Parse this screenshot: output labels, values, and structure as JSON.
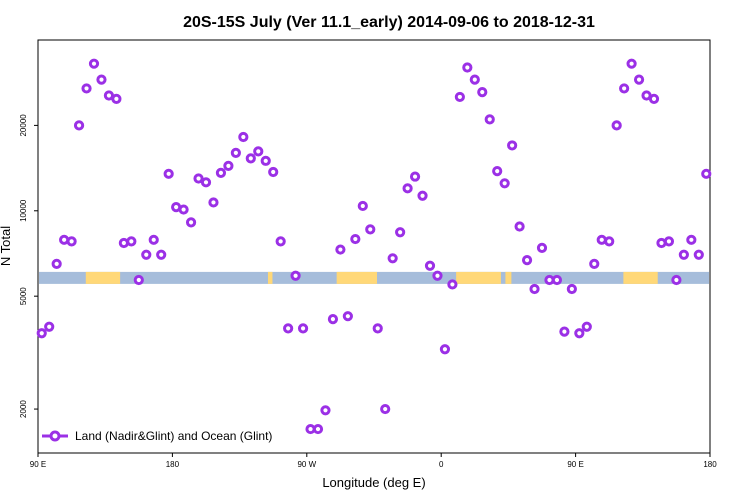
{
  "chart_data": {
    "type": "scatter",
    "title": "20S-15S July (Ver 11.1_early)   2014-09-06 to 2018-12-31",
    "xlabel": "Longitude (deg E)",
    "ylabel": "N Total",
    "y_scale": "log",
    "xlim": [
      90,
      540
    ],
    "ylim": [
      1400,
      40000
    ],
    "x_ticks": [
      {
        "value": 90,
        "label": "90 E"
      },
      {
        "value": 180,
        "label": "180"
      },
      {
        "value": 270,
        "label": "90 W"
      },
      {
        "value": 360,
        "label": "0"
      },
      {
        "value": 450,
        "label": "90 E"
      },
      {
        "value": 540,
        "label": "180"
      }
    ],
    "y_ticks": [
      {
        "value": 2000,
        "label": "2000"
      },
      {
        "value": 5000,
        "label": "5000"
      },
      {
        "value": 10000,
        "label": "10000"
      },
      {
        "value": 20000,
        "label": "20000"
      }
    ],
    "series": [
      {
        "name": "Land (Nadir&Glint) and Ocean (Glint)",
        "color": "#9b30e6",
        "points": [
          {
            "x": 92.5,
            "y": 3700
          },
          {
            "x": 97.5,
            "y": 3900
          },
          {
            "x": 102.5,
            "y": 6500
          },
          {
            "x": 107.5,
            "y": 7900
          },
          {
            "x": 112.5,
            "y": 7800
          },
          {
            "x": 117.5,
            "y": 20000
          },
          {
            "x": 122.5,
            "y": 27000
          },
          {
            "x": 127.5,
            "y": 33000
          },
          {
            "x": 132.5,
            "y": 29000
          },
          {
            "x": 137.5,
            "y": 25500
          },
          {
            "x": 142.5,
            "y": 24800
          },
          {
            "x": 147.5,
            "y": 7700
          },
          {
            "x": 152.5,
            "y": 7800
          },
          {
            "x": 157.5,
            "y": 5700
          },
          {
            "x": 162.5,
            "y": 7000
          },
          {
            "x": 167.5,
            "y": 7900
          },
          {
            "x": 172.5,
            "y": 7000
          },
          {
            "x": 177.5,
            "y": 13500
          },
          {
            "x": 182.5,
            "y": 10300
          },
          {
            "x": 187.5,
            "y": 10100
          },
          {
            "x": 192.5,
            "y": 9100
          },
          {
            "x": 197.5,
            "y": 13000
          },
          {
            "x": 202.5,
            "y": 12600
          },
          {
            "x": 207.5,
            "y": 10700
          },
          {
            "x": 212.5,
            "y": 13600
          },
          {
            "x": 217.5,
            "y": 14400
          },
          {
            "x": 222.5,
            "y": 16000
          },
          {
            "x": 227.5,
            "y": 18200
          },
          {
            "x": 232.5,
            "y": 15300
          },
          {
            "x": 237.5,
            "y": 16200
          },
          {
            "x": 242.5,
            "y": 15000
          },
          {
            "x": 247.5,
            "y": 13700
          },
          {
            "x": 252.5,
            "y": 7800
          },
          {
            "x": 257.5,
            "y": 3850
          },
          {
            "x": 262.5,
            "y": 5900
          },
          {
            "x": 267.5,
            "y": 3850
          },
          {
            "x": 272.5,
            "y": 1700
          },
          {
            "x": 277.5,
            "y": 1700
          },
          {
            "x": 282.5,
            "y": 1980
          },
          {
            "x": 287.5,
            "y": 4150
          },
          {
            "x": 292.5,
            "y": 7300
          },
          {
            "x": 297.5,
            "y": 4250
          },
          {
            "x": 302.5,
            "y": 7950
          },
          {
            "x": 307.5,
            "y": 10400
          },
          {
            "x": 312.5,
            "y": 8600
          },
          {
            "x": 317.5,
            "y": 3850
          },
          {
            "x": 322.5,
            "y": 2000
          },
          {
            "x": 327.5,
            "y": 6800
          },
          {
            "x": 332.5,
            "y": 8400
          },
          {
            "x": 337.5,
            "y": 12000
          },
          {
            "x": 342.5,
            "y": 13200
          },
          {
            "x": 347.5,
            "y": 11300
          },
          {
            "x": 352.5,
            "y": 6400
          },
          {
            "x": 357.5,
            "y": 5900
          },
          {
            "x": 362.5,
            "y": 3250
          },
          {
            "x": 367.5,
            "y": 5500
          },
          {
            "x": 372.5,
            "y": 25200
          },
          {
            "x": 377.5,
            "y": 32000
          },
          {
            "x": 382.5,
            "y": 29000
          },
          {
            "x": 387.5,
            "y": 26200
          },
          {
            "x": 392.5,
            "y": 21000
          },
          {
            "x": 397.5,
            "y": 13800
          },
          {
            "x": 402.5,
            "y": 12500
          },
          {
            "x": 407.5,
            "y": 17000
          },
          {
            "x": 412.5,
            "y": 8800
          },
          {
            "x": 417.5,
            "y": 6700
          },
          {
            "x": 422.5,
            "y": 5300
          },
          {
            "x": 427.5,
            "y": 7400
          },
          {
            "x": 432.5,
            "y": 5700
          },
          {
            "x": 437.5,
            "y": 5700
          },
          {
            "x": 442.5,
            "y": 3750
          },
          {
            "x": 447.5,
            "y": 5300
          },
          {
            "x": 452.5,
            "y": 3700
          },
          {
            "x": 457.5,
            "y": 3900
          },
          {
            "x": 462.5,
            "y": 6500
          },
          {
            "x": 467.5,
            "y": 7900
          },
          {
            "x": 472.5,
            "y": 7800
          },
          {
            "x": 477.5,
            "y": 20000
          },
          {
            "x": 482.5,
            "y": 27000
          },
          {
            "x": 487.5,
            "y": 33000
          },
          {
            "x": 492.5,
            "y": 29000
          },
          {
            "x": 497.5,
            "y": 25500
          },
          {
            "x": 502.5,
            "y": 24800
          },
          {
            "x": 507.5,
            "y": 7700
          },
          {
            "x": 512.5,
            "y": 7800
          },
          {
            "x": 517.5,
            "y": 5700
          },
          {
            "x": 522.5,
            "y": 7000
          },
          {
            "x": 527.5,
            "y": 7900
          },
          {
            "x": 532.5,
            "y": 7000
          },
          {
            "x": 537.5,
            "y": 13500
          }
        ]
      }
    ],
    "surface_strip": {
      "value": 5800,
      "ocean_color": "#a6bddb",
      "land_color": "#ffd878",
      "land_ranges": [
        [
          122,
          145
        ],
        [
          244,
          247
        ],
        [
          290,
          317
        ],
        [
          370,
          400
        ],
        [
          403,
          407
        ],
        [
          482,
          505
        ]
      ]
    },
    "legend": {
      "position": "bottom-left",
      "label": "Land (Nadir&Glint) and Ocean (Glint)"
    }
  }
}
